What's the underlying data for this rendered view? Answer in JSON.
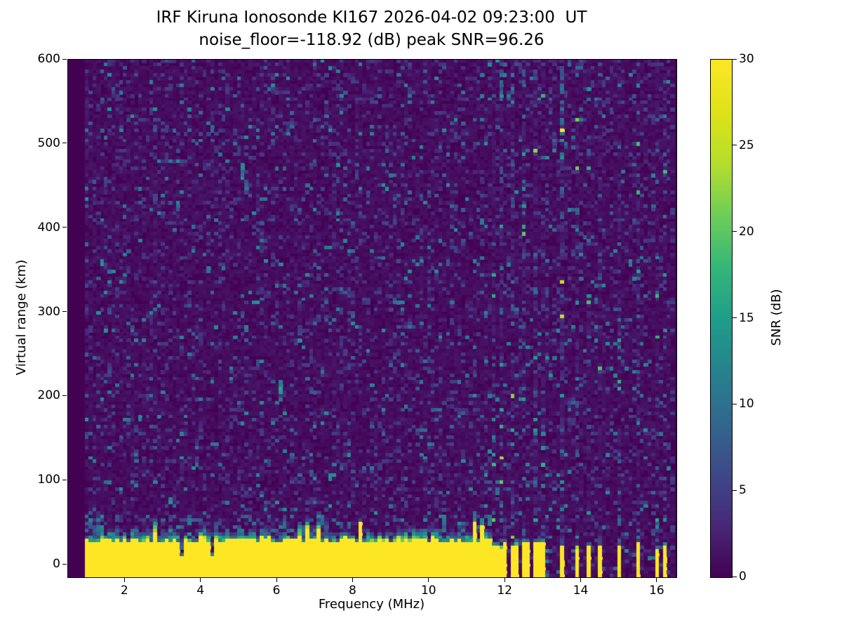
{
  "chart_data": {
    "type": "heatmap",
    "title": "IRF Kiruna Ionosonde KI167 2026-04-02 09:23:00  UT",
    "subtitle": "noise_floor=-118.92 (dB) peak SNR=96.26",
    "station": "IRF Kiruna Ionosonde KI167",
    "timestamp_ut": "2026-04-02 09:23:00",
    "noise_floor_db": -118.92,
    "peak_snr_db": 96.26,
    "xlabel": "Frequency (MHz)",
    "ylabel": "Virtual range (km)",
    "colorbar_label": "SNR (dB)",
    "x_range_mhz": [
      0.5,
      16.5
    ],
    "y_range_km": [
      -15,
      600
    ],
    "color_range_db": [
      0,
      30
    ],
    "x_ticks": [
      2,
      4,
      6,
      8,
      10,
      12,
      14,
      16
    ],
    "y_ticks": [
      0,
      100,
      200,
      300,
      400,
      500,
      600
    ],
    "colorbar_ticks": [
      0,
      5,
      10,
      15,
      20,
      25,
      30
    ],
    "colormap": "viridis",
    "colormap_stops": [
      "#440154",
      "#482878",
      "#3e4989",
      "#31688e",
      "#26828e",
      "#1f9e89",
      "#35b779",
      "#6ece58",
      "#b5de2b",
      "#dfe318",
      "#fde725"
    ],
    "render": {
      "seed": 16742,
      "freq_step_mhz": 0.1,
      "freq_start_mhz": 1.0,
      "freq_end_mhz": 16.4,
      "range_rows": 150,
      "ground_band": {
        "freq_end_mhz": 11.65,
        "top_km_min": 24,
        "top_km_max": 33,
        "snr_db": 30
      },
      "notch_freqs_mhz": [
        3.5,
        4.3
      ],
      "sparse_stripes_mhz": [
        11.7,
        11.8,
        11.9,
        12.0,
        12.2,
        12.3,
        12.5,
        12.6,
        12.8,
        12.9,
        13.0,
        13.5,
        13.9,
        14.2,
        14.5,
        15.0,
        15.5,
        16.0,
        16.2
      ],
      "interference_columns": [
        {
          "f": 1.0,
          "s": 1.5
        },
        {
          "f": 2.8,
          "s": 1.15
        },
        {
          "f": 5.5,
          "s": 1.2
        },
        {
          "f": 11.7,
          "s": 1.5
        },
        {
          "f": 11.9,
          "s": 1.7
        },
        {
          "f": 12.2,
          "s": 1.8
        },
        {
          "f": 12.5,
          "s": 1.7
        },
        {
          "f": 12.8,
          "s": 1.7
        },
        {
          "f": 13.0,
          "s": 1.5
        },
        {
          "f": 13.5,
          "s": 2.6
        },
        {
          "f": 13.9,
          "s": 1.7
        },
        {
          "f": 14.2,
          "s": 1.6
        },
        {
          "f": 14.5,
          "s": 1.5
        },
        {
          "f": 15.0,
          "s": 1.8
        },
        {
          "f": 15.5,
          "s": 1.7
        },
        {
          "f": 16.0,
          "s": 1.5
        },
        {
          "f": 16.2,
          "s": 1.4
        }
      ],
      "echo_features": [
        {
          "f": 5.0,
          "r0": 478,
          "r1": 496,
          "p": 0.7,
          "lo": 5,
          "hi": 12
        },
        {
          "f": 5.1,
          "r0": 456,
          "r1": 480,
          "p": 0.8,
          "lo": 6,
          "hi": 14
        },
        {
          "f": 5.2,
          "r0": 446,
          "r1": 462,
          "p": 0.6,
          "lo": 5,
          "hi": 11
        },
        {
          "f": 6.1,
          "r0": 193,
          "r1": 216,
          "p": 0.9,
          "lo": 9,
          "hi": 18
        },
        {
          "f": 13.5,
          "r0": 500,
          "r1": 592,
          "p": 0.5,
          "lo": 5,
          "hi": 11
        },
        {
          "f": 11.9,
          "r0": 560,
          "r1": 595,
          "p": 0.5,
          "lo": 5,
          "hi": 10
        }
      ]
    }
  }
}
